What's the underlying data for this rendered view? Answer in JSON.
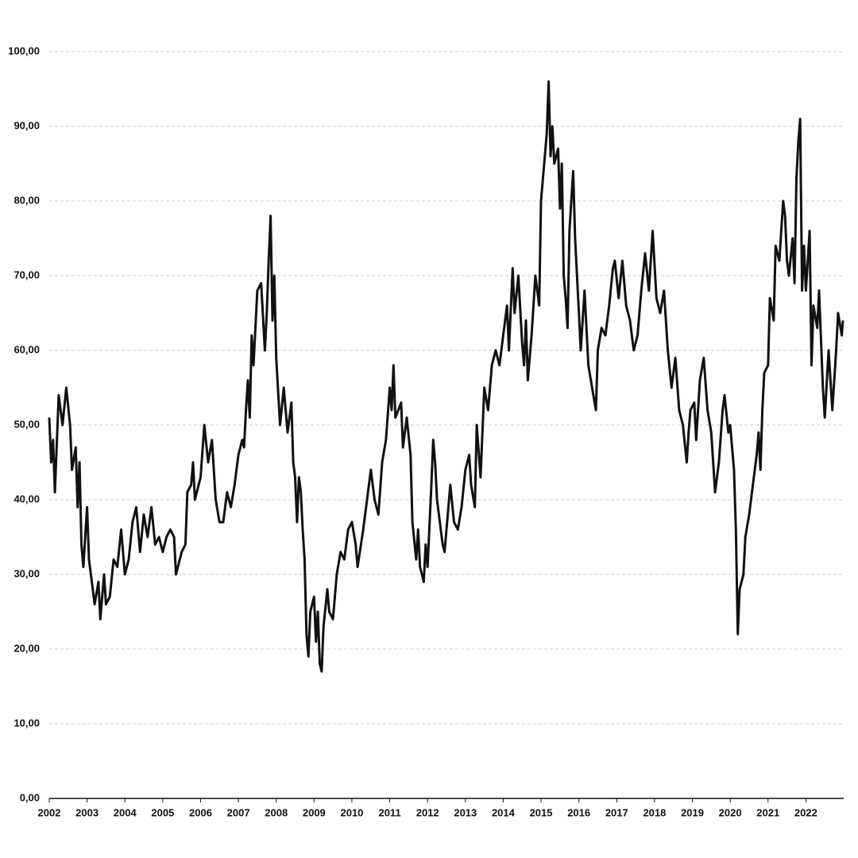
{
  "chart_data": {
    "type": "line",
    "color": "#111111",
    "x": [
      2002.0,
      2002.05,
      2002.1,
      2002.15,
      2002.25,
      2002.35,
      2002.45,
      2002.55,
      2002.6,
      2002.7,
      2002.75,
      2002.8,
      2002.85,
      2002.9,
      2003.0,
      2003.05,
      2003.15,
      2003.2,
      2003.3,
      2003.35,
      2003.45,
      2003.5,
      2003.6,
      2003.7,
      2003.8,
      2003.9,
      2004.0,
      2004.1,
      2004.2,
      2004.3,
      2004.4,
      2004.5,
      2004.6,
      2004.7,
      2004.8,
      2004.9,
      2005.0,
      2005.1,
      2005.2,
      2005.3,
      2005.35,
      2005.5,
      2005.6,
      2005.65,
      2005.75,
      2005.8,
      2005.85,
      2006.0,
      2006.1,
      2006.2,
      2006.3,
      2006.4,
      2006.5,
      2006.6,
      2006.7,
      2006.8,
      2006.9,
      2007.0,
      2007.1,
      2007.15,
      2007.2,
      2007.25,
      2007.3,
      2007.35,
      2007.4,
      2007.5,
      2007.6,
      2007.7,
      2007.75,
      2007.8,
      2007.85,
      2007.9,
      2007.95,
      2008.0,
      2008.1,
      2008.2,
      2008.3,
      2008.4,
      2008.45,
      2008.5,
      2008.55,
      2008.6,
      2008.65,
      2008.7,
      2008.75,
      2008.8,
      2008.85,
      2008.9,
      2009.0,
      2009.05,
      2009.1,
      2009.15,
      2009.2,
      2009.25,
      2009.35,
      2009.4,
      2009.5,
      2009.6,
      2009.7,
      2009.8,
      2009.9,
      2010.0,
      2010.1,
      2010.15,
      2010.3,
      2010.4,
      2010.5,
      2010.6,
      2010.7,
      2010.8,
      2010.9,
      2011.0,
      2011.05,
      2011.1,
      2011.15,
      2011.3,
      2011.35,
      2011.45,
      2011.55,
      2011.6,
      2011.7,
      2011.75,
      2011.8,
      2011.9,
      2011.95,
      2012.0,
      2012.1,
      2012.15,
      2012.2,
      2012.25,
      2012.4,
      2012.45,
      2012.6,
      2012.7,
      2012.8,
      2012.9,
      2013.0,
      2013.1,
      2013.15,
      2013.25,
      2013.3,
      2013.4,
      2013.5,
      2013.6,
      2013.7,
      2013.8,
      2013.9,
      2014.0,
      2014.1,
      2014.15,
      2014.25,
      2014.3,
      2014.4,
      2014.5,
      2014.55,
      2014.6,
      2014.65,
      2014.75,
      2014.85,
      2014.95,
      2015.0,
      2015.1,
      2015.15,
      2015.2,
      2015.25,
      2015.3,
      2015.35,
      2015.45,
      2015.5,
      2015.55,
      2015.6,
      2015.65,
      2015.7,
      2015.75,
      2015.8,
      2015.85,
      2015.9,
      2016.0,
      2016.05,
      2016.15,
      2016.25,
      2016.35,
      2016.45,
      2016.5,
      2016.6,
      2016.7,
      2016.8,
      2016.9,
      2016.95,
      2017.05,
      2017.15,
      2017.25,
      2017.35,
      2017.45,
      2017.55,
      2017.65,
      2017.75,
      2017.85,
      2017.95,
      2018.05,
      2018.15,
      2018.25,
      2018.35,
      2018.45,
      2018.55,
      2018.65,
      2018.75,
      2018.85,
      2018.9,
      2018.95,
      2019.05,
      2019.1,
      2019.2,
      2019.3,
      2019.4,
      2019.5,
      2019.6,
      2019.7,
      2019.8,
      2019.85,
      2019.95,
      2020.0,
      2020.1,
      2020.15,
      2020.2,
      2020.25,
      2020.35,
      2020.4,
      2020.5,
      2020.6,
      2020.7,
      2020.75,
      2020.8,
      2020.85,
      2020.9,
      2021.0,
      2021.05,
      2021.15,
      2021.2,
      2021.3,
      2021.4,
      2021.45,
      2021.5,
      2021.55,
      2021.65,
      2021.7,
      2021.75,
      2021.8,
      2021.85,
      2021.9,
      2021.95,
      2022.0,
      2022.1,
      2022.15,
      2022.2,
      2022.3,
      2022.35,
      2022.45,
      2022.5,
      2022.6,
      2022.7,
      2022.8,
      2022.85,
      2022.95,
      2022.98
    ],
    "values": [
      51,
      45,
      48,
      41,
      54,
      50,
      55,
      50,
      44,
      47,
      39,
      45,
      34,
      31,
      39,
      32,
      28,
      26,
      29,
      24,
      30,
      26,
      27,
      32,
      31,
      36,
      30,
      32,
      37,
      39,
      33,
      38,
      35,
      39,
      34,
      35,
      33,
      35,
      36,
      35,
      30,
      33,
      34,
      41,
      42,
      45,
      40,
      43,
      50,
      45,
      48,
      40,
      37,
      37,
      41,
      39,
      42,
      46,
      48,
      47,
      52,
      56,
      51,
      62,
      58,
      68,
      69,
      60,
      65,
      72,
      78,
      64,
      70,
      59,
      50,
      55,
      49,
      53,
      45,
      43,
      37,
      43,
      41,
      36,
      32,
      22,
      19,
      25,
      27,
      21,
      25,
      18,
      17,
      23,
      28,
      25,
      24,
      30,
      33,
      32,
      36,
      37,
      34,
      31,
      36,
      40,
      44,
      40,
      38,
      45,
      48,
      55,
      52,
      58,
      51,
      53,
      47,
      51,
      46,
      37,
      32,
      36,
      31,
      29,
      34,
      31,
      42,
      48,
      45,
      40,
      34,
      33,
      42,
      37,
      36,
      39,
      44,
      46,
      42,
      39,
      50,
      43,
      55,
      52,
      58,
      60,
      58,
      62,
      66,
      60,
      71,
      65,
      70,
      61,
      58,
      64,
      56,
      62,
      70,
      66,
      80,
      86,
      89,
      96,
      86,
      90,
      85,
      87,
      79,
      85,
      70,
      67,
      63,
      76,
      80,
      84,
      75,
      65,
      60,
      68,
      58,
      55,
      52,
      60,
      63,
      62,
      66,
      71,
      72,
      67,
      72,
      66,
      64,
      60,
      62,
      68,
      73,
      68,
      76,
      67,
      65,
      68,
      60,
      55,
      59,
      52,
      50,
      45,
      49,
      52,
      53,
      48,
      56,
      59,
      52,
      49,
      41,
      45,
      52,
      54,
      49,
      50,
      44,
      36,
      22,
      28,
      30,
      35,
      38,
      42,
      46,
      49,
      44,
      52,
      57,
      58,
      67,
      64,
      74,
      72,
      80,
      78,
      72,
      70,
      75,
      69,
      83,
      88,
      91,
      68,
      74,
      68,
      76,
      58,
      66,
      63,
      68,
      55,
      51,
      60,
      52,
      60,
      65,
      62,
      64
    ],
    "xlim": [
      2002,
      2023
    ],
    "xticks": [
      2002,
      2003,
      2004,
      2005,
      2006,
      2007,
      2008,
      2009,
      2010,
      2011,
      2012,
      2013,
      2014,
      2015,
      2016,
      2017,
      2018,
      2019,
      2020,
      2021,
      2022
    ],
    "ylim": [
      0,
      100
    ],
    "yticks": [
      {
        "value": 0,
        "label": "0,00"
      },
      {
        "value": 10,
        "label": "10,00"
      },
      {
        "value": 20,
        "label": "20,00"
      },
      {
        "value": 30,
        "label": "30,00"
      },
      {
        "value": 40,
        "label": "40,00"
      },
      {
        "value": 50,
        "label": "50,00"
      },
      {
        "value": 60,
        "label": "60,00"
      },
      {
        "value": 70,
        "label": "70,00"
      },
      {
        "value": 80,
        "label": "80,00"
      },
      {
        "value": 90,
        "label": "90,00"
      },
      {
        "value": 100,
        "label": "100,00"
      }
    ],
    "grid": true
  }
}
